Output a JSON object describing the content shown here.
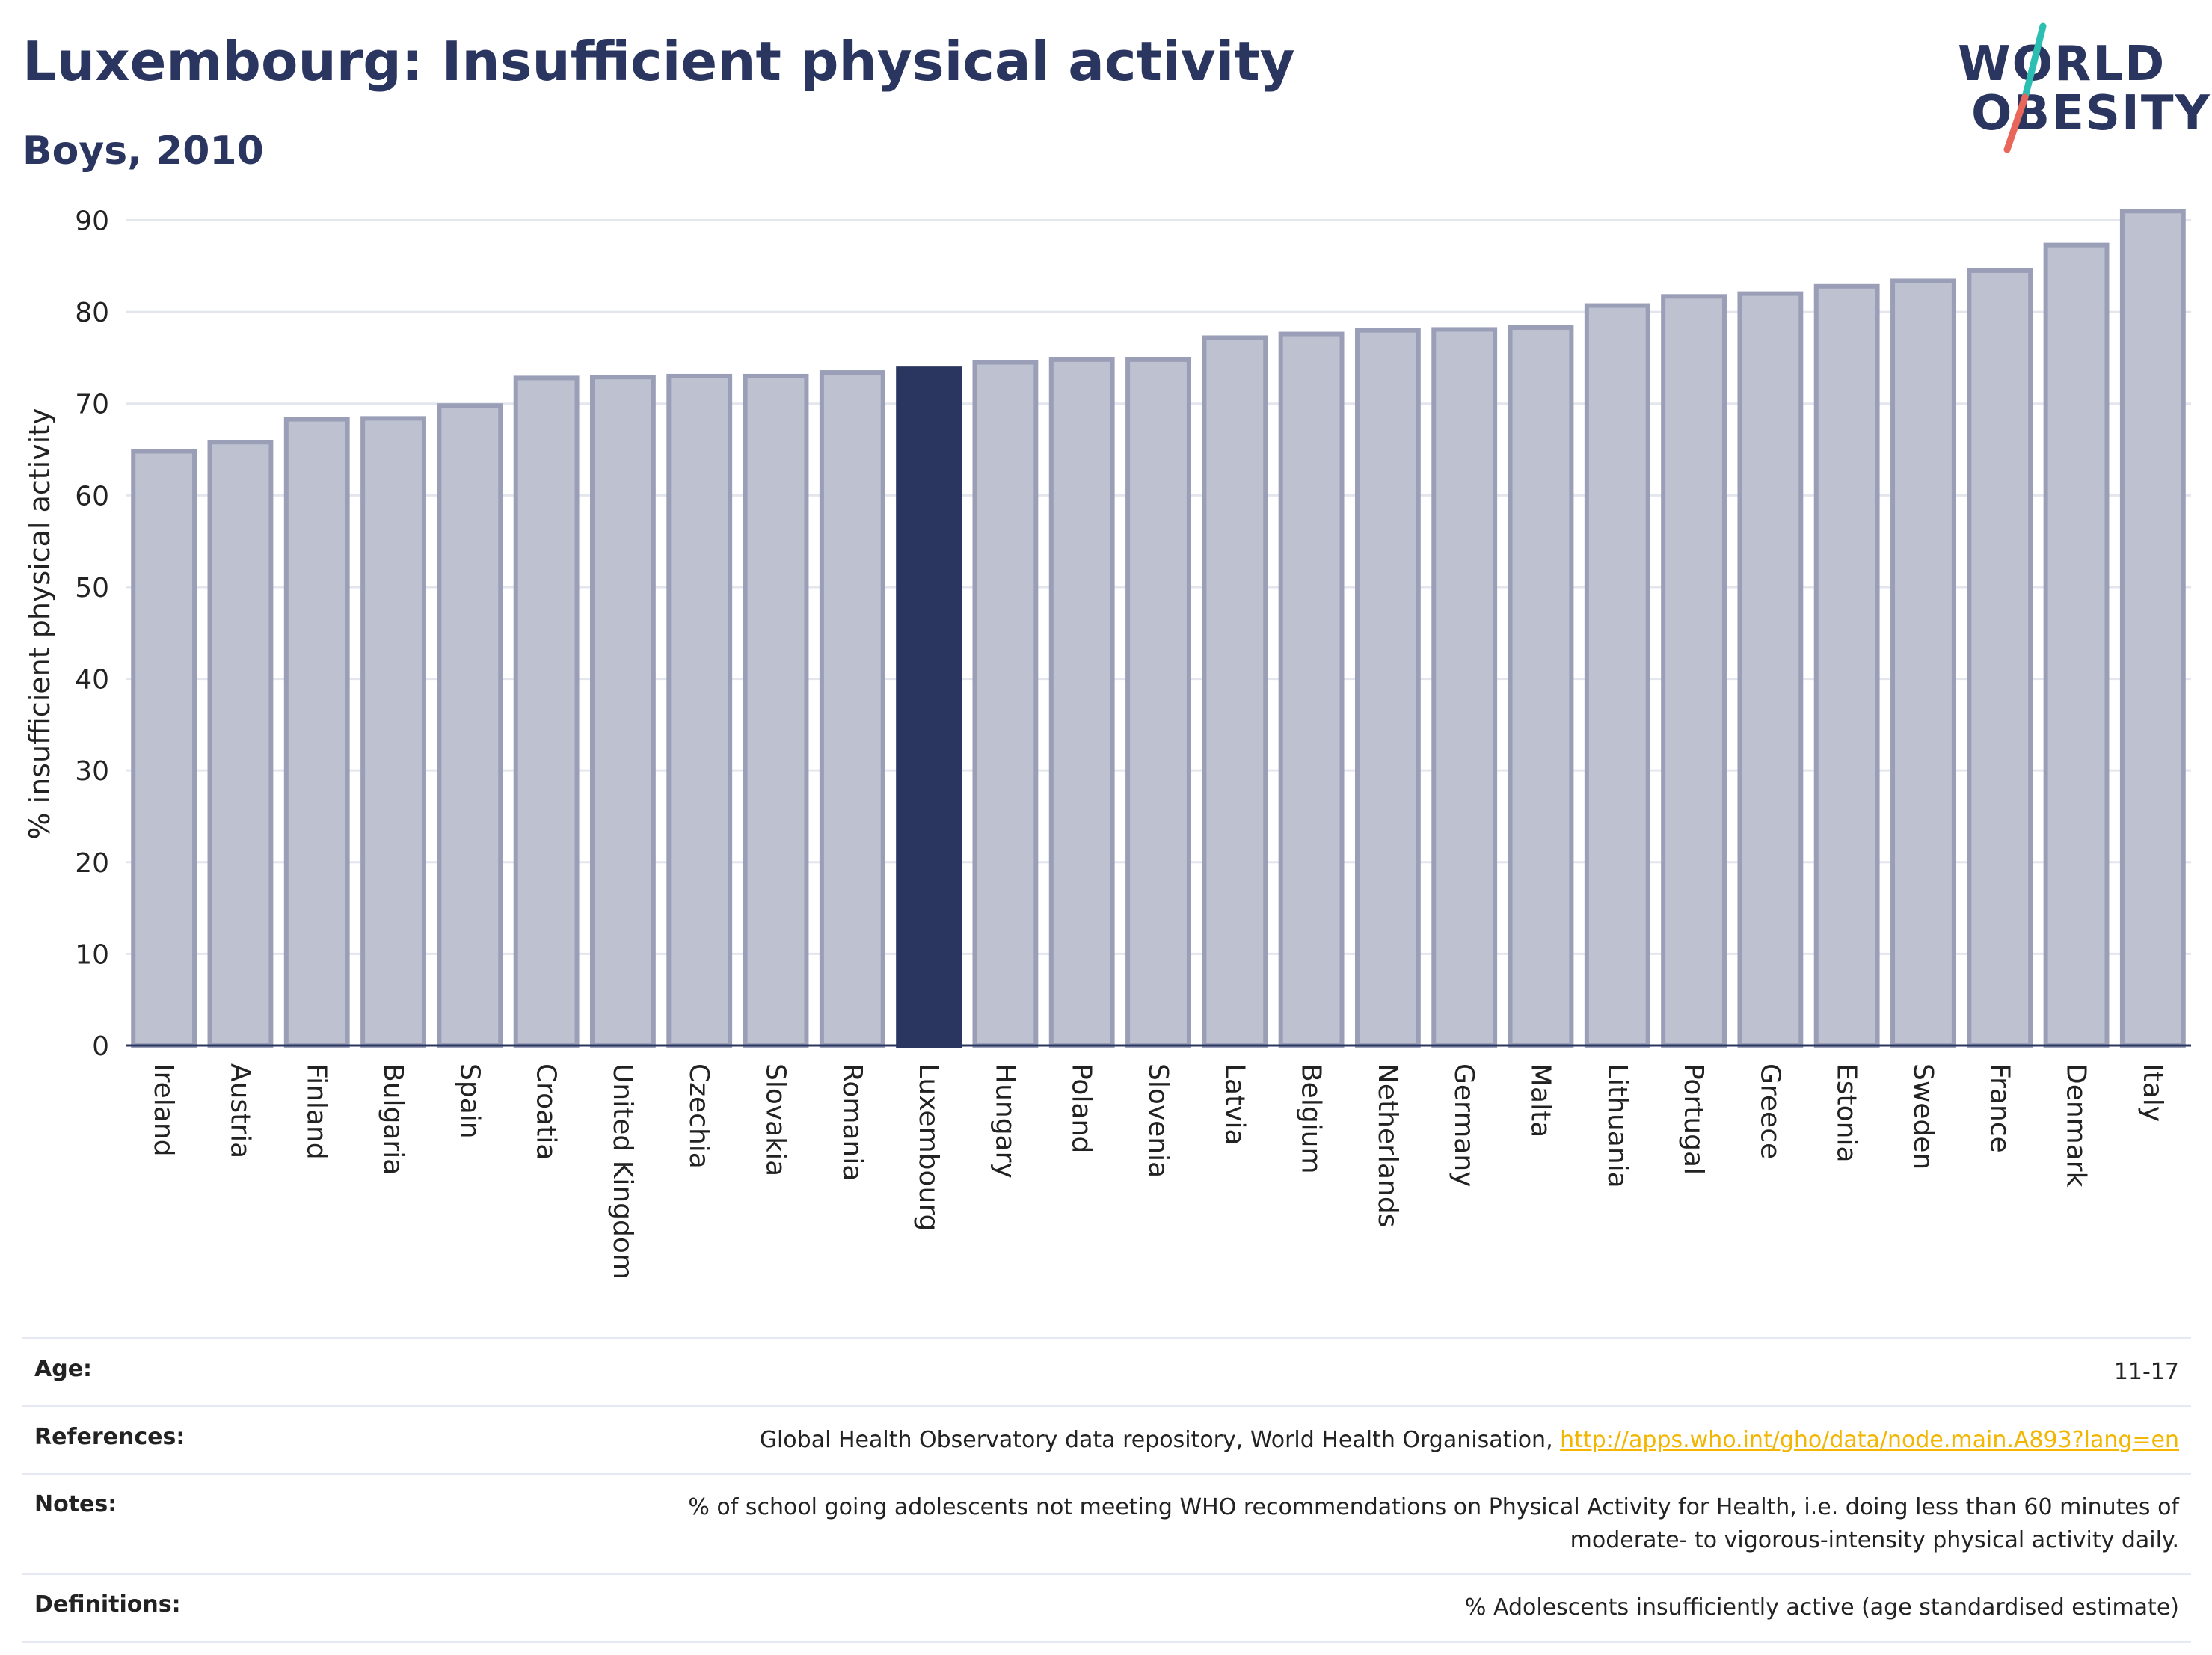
{
  "header": {
    "title": "Luxembourg: Insufficient physical activity",
    "subtitle": "Boys, 2010"
  },
  "logo": {
    "line1": "WORLD",
    "line2": "OBESITY",
    "slash_colors": [
      "#2bbfb3",
      "#e8675a"
    ]
  },
  "chart_data": {
    "type": "bar",
    "ylabel": "% insufficient physical activity",
    "xlabel": "",
    "ylim": [
      0,
      92
    ],
    "yticks": [
      0,
      10,
      20,
      30,
      40,
      50,
      60,
      70,
      80,
      90
    ],
    "grid": true,
    "highlight": "Luxembourg",
    "colors": {
      "default_fill": "#bec1cf",
      "default_stroke": "#9a9fb7",
      "highlight_fill": "#2a3560"
    },
    "categories": [
      "Ireland",
      "Austria",
      "Finland",
      "Bulgaria",
      "Spain",
      "Croatia",
      "United Kingdom",
      "Czechia",
      "Slovakia",
      "Romania",
      "Luxembourg",
      "Hungary",
      "Poland",
      "Slovenia",
      "Latvia",
      "Belgium",
      "Netherlands",
      "Germany",
      "Malta",
      "Lithuania",
      "Portugal",
      "Greece",
      "Estonia",
      "Sweden",
      "France",
      "Denmark",
      "Italy"
    ],
    "values": [
      64.8,
      65.8,
      68.3,
      68.4,
      69.8,
      72.8,
      72.9,
      73.0,
      73.0,
      73.4,
      73.8,
      74.5,
      74.8,
      74.8,
      77.2,
      77.6,
      78.0,
      78.1,
      78.3,
      80.7,
      81.7,
      82.0,
      82.8,
      83.4,
      84.5,
      87.3,
      91.0
    ]
  },
  "meta": {
    "age_label": "Age:",
    "age_value": "11-17",
    "references_label": "References:",
    "references_text": "Global Health Observatory data repository, World Health Organisation, ",
    "references_link": "http://apps.who.int/gho/data/node.main.A893?lang=en",
    "notes_label": "Notes:",
    "notes_line1": "% of school going adolescents not meeting WHO recommendations on Physical Activity for Health, i.e. doing less than 60 minutes of",
    "notes_line2": "moderate- to vigorous-intensity physical activity daily.",
    "definitions_label": "Definitions:",
    "definitions_value": "% Adolescents insufficiently active (age standardised estimate)"
  }
}
